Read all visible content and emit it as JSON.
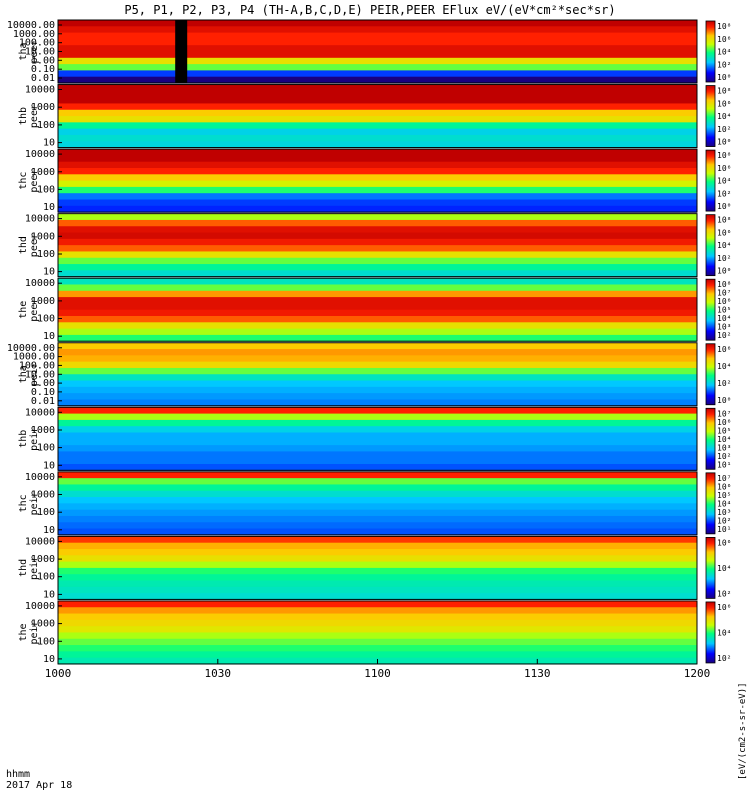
{
  "chart_data": {
    "type": "heatmap",
    "title": "P5, P1, P2, P3, P4 (TH-A,B,C,D,E) PEIR,PEER EFlux eV/(eV*cm²*sec*sr)",
    "x_ticks": [
      "1000",
      "1030",
      "1100",
      "1130",
      "1200"
    ],
    "x_label_lines": [
      "hhmm",
      "2017 Apr 18"
    ],
    "colorbar_label": "[eV/(cm2-s-sr-eV)]",
    "panels": [
      {
        "name": "tha peer",
        "label_lines": [
          "tha",
          "peer"
        ],
        "yticks": [
          "10000.00",
          "1000.00",
          "100.00",
          "10.00",
          "1.00",
          "0.10",
          "0.01"
        ],
        "cbar_ticks": [
          "10⁸",
          "10⁶",
          "10⁴",
          "10²",
          "10⁰"
        ],
        "profile": [
          1.0,
          0.95,
          0.9,
          0.9,
          0.95,
          0.95,
          0.7,
          0.55,
          0.2,
          0.0
        ],
        "gap_x": 1022
      },
      {
        "name": "thb peer",
        "label_lines": [
          "thb",
          "peer"
        ],
        "yticks": [
          "10000",
          "1000",
          "100",
          "10"
        ],
        "cbar_ticks": [
          "10⁸",
          "10⁶",
          "10⁴",
          "10²",
          "10⁰"
        ],
        "profile": [
          1.0,
          1.0,
          1.0,
          0.9,
          0.75,
          0.7,
          0.45,
          0.35,
          0.38,
          0.36
        ]
      },
      {
        "name": "thc peer",
        "label_lines": [
          "thc",
          "peer"
        ],
        "yticks": [
          "10000",
          "1000",
          "100",
          "10"
        ],
        "cbar_ticks": [
          "10⁸",
          "10⁶",
          "10⁴",
          "10²",
          "10⁰"
        ],
        "profile": [
          1.0,
          1.0,
          0.95,
          0.9,
          0.75,
          0.65,
          0.5,
          0.25,
          0.2,
          0.18
        ]
      },
      {
        "name": "thd peer",
        "label_lines": [
          "thd",
          "peer"
        ],
        "yticks": [
          "10000",
          "1000",
          "100",
          "10"
        ],
        "cbar_ticks": [
          "10⁸",
          "10⁶",
          "10⁴",
          "10²",
          "10⁰"
        ],
        "profile": [
          0.6,
          0.85,
          0.95,
          0.97,
          0.92,
          0.85,
          0.7,
          0.55,
          0.45,
          0.38
        ]
      },
      {
        "name": "the peer",
        "label_lines": [
          "the",
          "peer"
        ],
        "yticks": [
          "10000",
          "1000",
          "100",
          "10"
        ],
        "cbar_ticks": [
          "10⁸",
          "10⁷",
          "10⁶",
          "10⁵",
          "10⁴",
          "10³",
          "10²"
        ],
        "profile": [
          0.4,
          0.55,
          0.8,
          0.95,
          0.95,
          0.92,
          0.85,
          0.7,
          0.6,
          0.5
        ]
      },
      {
        "name": "tha peir",
        "label_lines": [
          "tha",
          "peir"
        ],
        "yticks": [
          "10000.00",
          "1000.00",
          "100.00",
          "10.00",
          "1.00",
          "0.10",
          "0.01"
        ],
        "cbar_ticks": [
          "10⁶",
          "10⁴",
          "10²",
          "10⁰"
        ],
        "profile": [
          0.75,
          0.8,
          0.78,
          0.72,
          0.55,
          0.4,
          0.32,
          0.3,
          0.28,
          0.26
        ]
      },
      {
        "name": "thb peir",
        "label_lines": [
          "thb",
          "peir"
        ],
        "yticks": [
          "10000",
          "1000",
          "100",
          "10"
        ],
        "cbar_ticks": [
          "10⁷",
          "10⁶",
          "10⁵",
          "10⁴",
          "10³",
          "10²",
          "10¹"
        ],
        "profile": [
          0.9,
          0.6,
          0.45,
          0.35,
          0.3,
          0.3,
          0.28,
          0.25,
          0.25,
          0.22
        ]
      },
      {
        "name": "thc peir",
        "label_lines": [
          "thc",
          "peir"
        ],
        "yticks": [
          "10000",
          "1000",
          "100",
          "10"
        ],
        "cbar_ticks": [
          "10⁷",
          "10⁶",
          "10⁵",
          "10⁴",
          "10³",
          "10²",
          "10¹"
        ],
        "profile": [
          0.9,
          0.55,
          0.45,
          0.38,
          0.32,
          0.3,
          0.28,
          0.26,
          0.24,
          0.22
        ]
      },
      {
        "name": "thd peir",
        "label_lines": [
          "thd",
          "peir"
        ],
        "yticks": [
          "10000",
          "1000",
          "100",
          "10"
        ],
        "cbar_ticks": [
          "10⁶",
          "10⁴",
          "10²"
        ],
        "profile": [
          0.88,
          0.78,
          0.75,
          0.7,
          0.6,
          0.5,
          0.45,
          0.42,
          0.4,
          0.38
        ]
      },
      {
        "name": "the peir",
        "label_lines": [
          "the",
          "peir"
        ],
        "yticks": [
          "10000",
          "1000",
          "100",
          "10"
        ],
        "cbar_ticks": [
          "10⁶",
          "10⁴",
          "10²"
        ],
        "profile": [
          0.9,
          0.8,
          0.75,
          0.72,
          0.68,
          0.6,
          0.55,
          0.5,
          0.45,
          0.42
        ]
      }
    ]
  }
}
